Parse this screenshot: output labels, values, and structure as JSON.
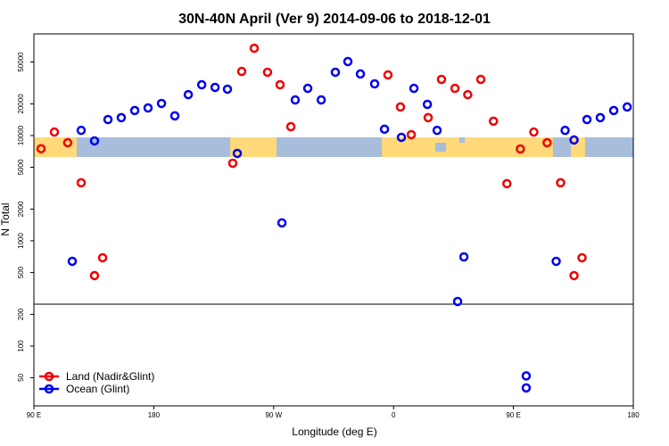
{
  "chart_data": {
    "type": "scatter",
    "title": "30N-40N April (Ver 9)   2014-09-06 to 2018-12-01",
    "xlabel": "Longitude (deg E)",
    "ylabel": "N Total",
    "log_y": true,
    "hline": 250,
    "legend": "lower left",
    "xlim": [
      90,
      540
    ],
    "ylim": [
      27,
      92500
    ],
    "xticks": [
      {
        "value": 90,
        "label": "90 E"
      },
      {
        "value": 180,
        "label": "180"
      },
      {
        "value": 270,
        "label": "90 W"
      },
      {
        "value": 360,
        "label": "0"
      },
      {
        "value": 450,
        "label": "90 E"
      },
      {
        "value": 540,
        "label": "180"
      }
    ],
    "yticks": [
      50,
      100,
      200,
      500,
      1000,
      2000,
      5000,
      10000,
      20000,
      50000
    ],
    "series": [
      {
        "name": "Land (Nadir&Glint)",
        "color": "#ee0000",
        "x": [
          95.4,
          105.4,
          115.4,
          125.5,
          141.6,
          135.5,
          239.3,
          246.0,
          255.4,
          265.4,
          274.8,
          282.9,
          355.8,
          365.2,
          373.3,
          386.0,
          396.0,
          406.1,
          415.7,
          425.5,
          435.0,
          445.1,
          455.2,
          465.3,
          475.3,
          485.4,
          495.5,
          501.5
        ],
        "values": [
          7500,
          10800,
          8550,
          3560,
          690,
          467,
          5460,
          40700,
          67600,
          40000,
          30400,
          12150,
          37700,
          18700,
          10200,
          14800,
          34200,
          28100,
          24500,
          34200,
          13700,
          3490,
          7460,
          10800,
          8550,
          3560,
          467,
          690
        ]
      },
      {
        "name": "Ocean (Glint)",
        "color": "#0000ee",
        "x": [
          118.8,
          125.5,
          135.5,
          145.6,
          155.6,
          165.7,
          175.7,
          185.8,
          195.8,
          205.9,
          216.0,
          226.0,
          235.3,
          242.7,
          276.2,
          286.2,
          295.6,
          305.7,
          316.3,
          325.7,
          335.1,
          345.8,
          353.2,
          365.9,
          375.3,
          385.4,
          392.7,
          412.8,
          408.1,
          459.6,
          459.6,
          482.1,
          488.8,
          495.5,
          505.2,
          515.2,
          525.3,
          535.4
        ],
        "values": [
          638,
          11200,
          8900,
          14200,
          14800,
          17300,
          18300,
          20200,
          15400,
          24500,
          30400,
          28700,
          27600,
          6770,
          1480,
          21800,
          28100,
          21800,
          40000,
          50500,
          38500,
          31000,
          11500,
          9620,
          28100,
          19800,
          11200,
          703,
          265,
          52,
          40,
          638,
          11200,
          9080,
          14200,
          14800,
          17300,
          18700
        ]
      }
    ]
  }
}
